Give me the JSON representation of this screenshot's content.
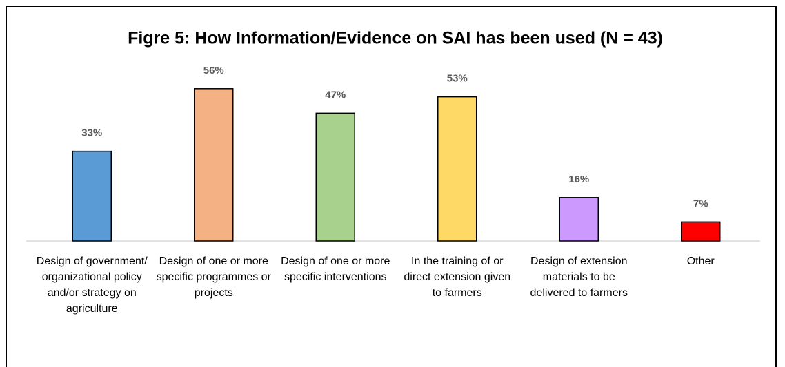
{
  "chart_data": {
    "type": "bar",
    "title": "Figre 5: How Information/Evidence on SAI has been used (N = 43)",
    "categories": [
      "Design of government/ organizational policy and/or strategy on agriculture",
      "Design of one or more specific programmes or projects",
      "Design of one or more specific interventions",
      "In the training of or direct extension given to farmers",
      "Design of extension materials to be delivered to farmers",
      "Other"
    ],
    "values": [
      33,
      56,
      47,
      53,
      16,
      7
    ],
    "value_labels": [
      "33%",
      "56%",
      "47%",
      "53%",
      "16%",
      "7%"
    ],
    "colors": [
      "#5b9bd5",
      "#f4b183",
      "#a9d18e",
      "#ffd966",
      "#cc99ff",
      "#ff0000"
    ],
    "ylim": [
      0,
      60
    ]
  }
}
